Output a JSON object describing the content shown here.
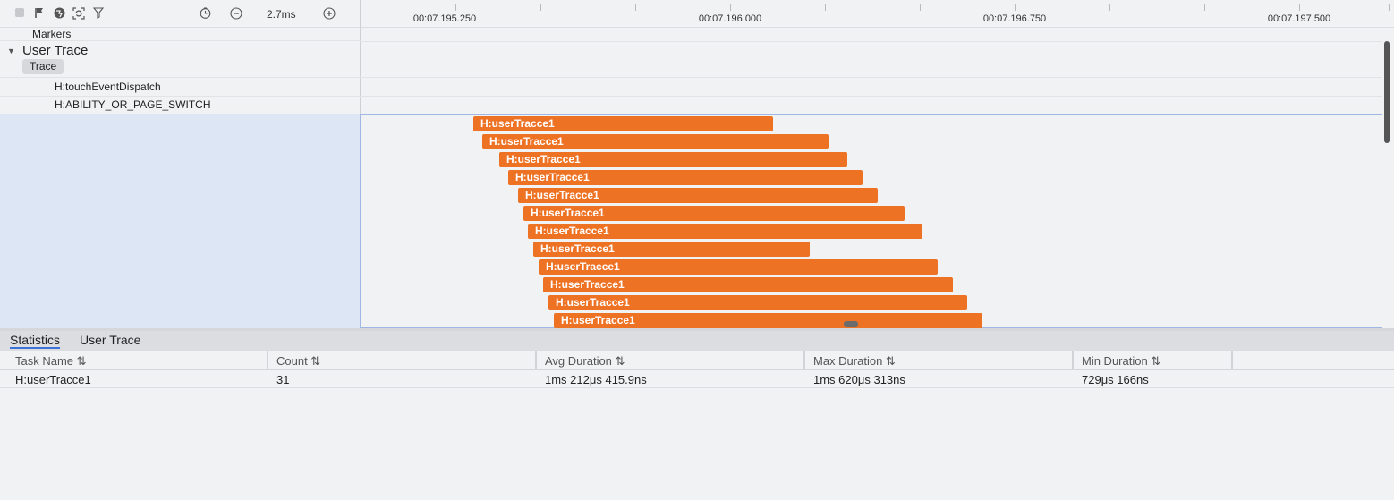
{
  "toolbar": {
    "icons": [
      "stop-square-icon",
      "flag-icon",
      "globe-icon",
      "camera-refresh-icon",
      "filter-icon",
      "clock-icon",
      "zoom-out-icon",
      "zoom-in-icon"
    ],
    "zoom_label": "2.7ms"
  },
  "ruler": {
    "labels": [
      "00:07.195.250",
      "00:07.196.000",
      "00:07.196.750",
      "00:07.197.500"
    ]
  },
  "tree": {
    "markers_label": "Markers",
    "user_trace_title": "User Trace",
    "trace_chip": "Trace",
    "rows": [
      "H:touchEventDispatch",
      "H:ABILITY_OR_PAGE_SWITCH"
    ]
  },
  "lane": {
    "bars": [
      {
        "label": "H:userTracce1"
      },
      {
        "label": "H:userTracce1"
      },
      {
        "label": "H:userTracce1"
      },
      {
        "label": "H:userTracce1"
      },
      {
        "label": "H:userTracce1"
      },
      {
        "label": "H:userTracce1"
      },
      {
        "label": "H:userTracce1"
      },
      {
        "label": "H:userTracce1"
      },
      {
        "label": "H:userTracce1"
      },
      {
        "label": "H:userTracce1"
      },
      {
        "label": "H:userTracce1"
      },
      {
        "label": "H:userTracce1"
      }
    ],
    "bar_color": "#ee7224"
  },
  "bottom": {
    "tabs": [
      "Statistics",
      "User Trace"
    ],
    "columns": [
      "Task Name ⇅",
      "Count ⇅",
      "Avg Duration ⇅",
      "Max Duration ⇅",
      "Min Duration ⇅"
    ],
    "rows": [
      [
        "H:userTracce1",
        "31",
        "1ms 212μs 415.9ns",
        "1ms 620μs 313ns",
        "729μs 166ns"
      ]
    ]
  }
}
